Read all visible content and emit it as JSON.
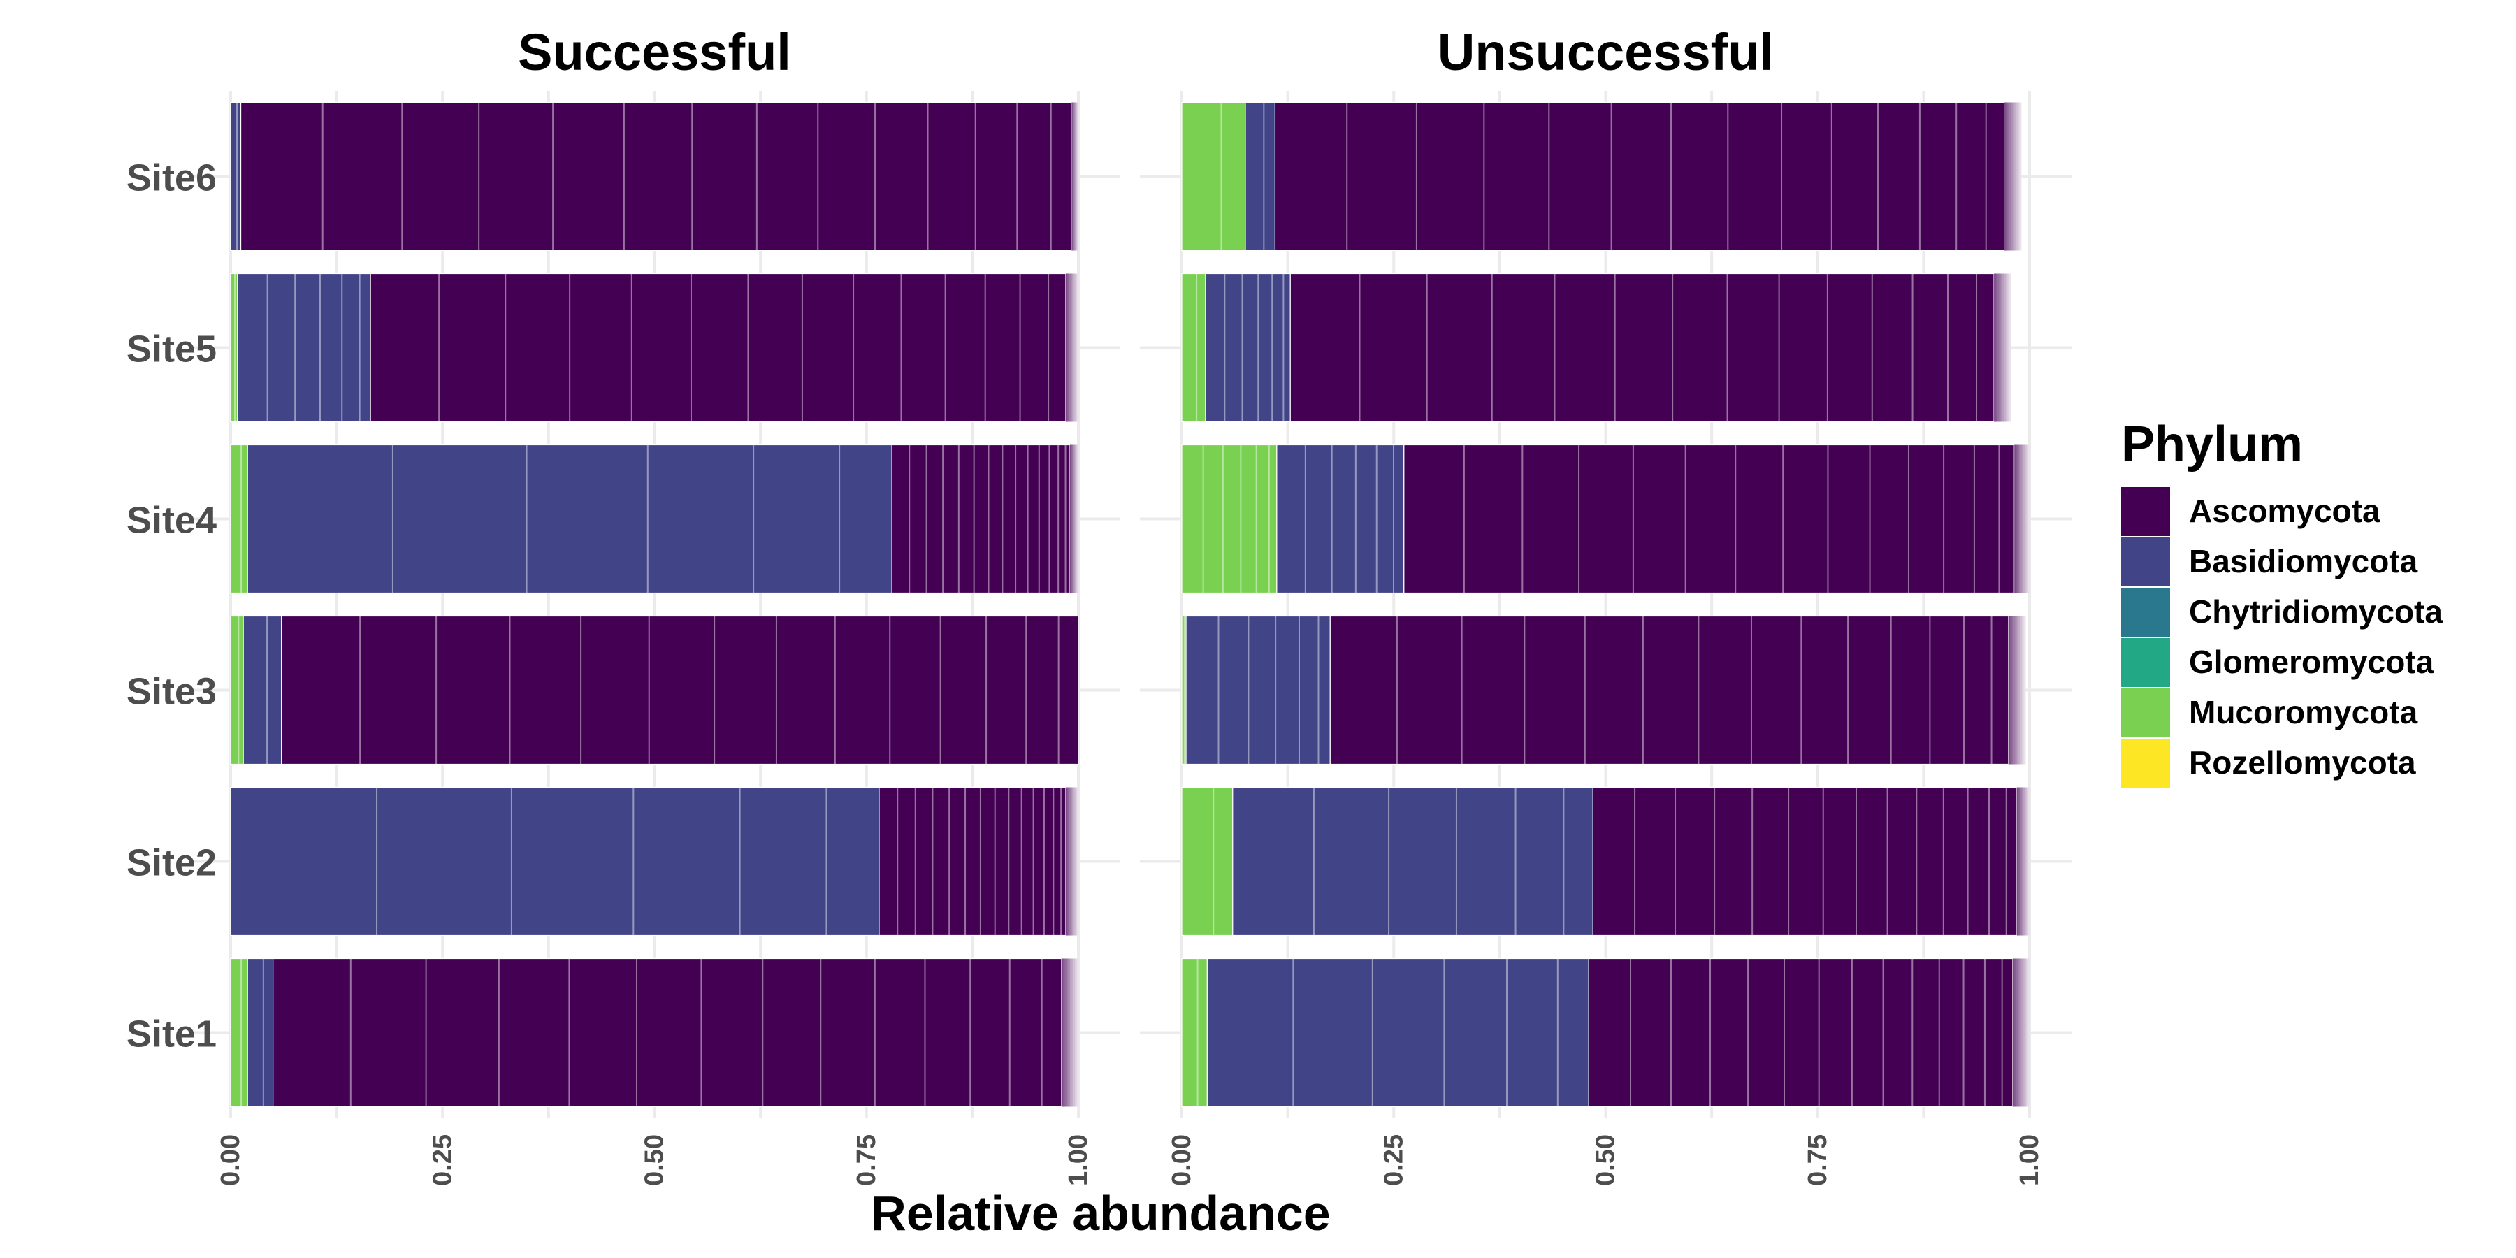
{
  "chart_data": {
    "type": "bar",
    "orientation": "horizontal",
    "stacked": true,
    "xlabel": "Relative abundance",
    "ylabel": "",
    "xlim": [
      0,
      1
    ],
    "x_ticks": [
      "0.00",
      "0.25",
      "0.50",
      "0.75",
      "1.00"
    ],
    "x_tick_values": [
      0,
      0.25,
      0.5,
      0.75,
      1.0
    ],
    "categories": [
      "Site1",
      "Site2",
      "Site3",
      "Site4",
      "Site5",
      "Site6"
    ],
    "grid": true,
    "legend": {
      "title": "Phylum",
      "position": "right",
      "entries": [
        {
          "name": "Ascomycota",
          "color": "#440154"
        },
        {
          "name": "Basidiomycota",
          "color": "#414487"
        },
        {
          "name": "Chytridiomycota",
          "color": "#2A788E"
        },
        {
          "name": "Glomeromycota",
          "color": "#22A884"
        },
        {
          "name": "Mucoromycota",
          "color": "#7AD151"
        },
        {
          "name": "Rozellomycota",
          "color": "#FDE725"
        }
      ]
    },
    "panels": [
      {
        "title": "Successful",
        "sites": [
          {
            "site": "Site1",
            "Mucoromycota": 0.02,
            "Basidiomycota": 0.03,
            "Ascomycota": 0.93
          },
          {
            "site": "Site2",
            "Mucoromycota": 0.0,
            "Basidiomycota": 0.765,
            "Ascomycota": 0.22
          },
          {
            "site": "Site3",
            "Mucoromycota": 0.015,
            "Basidiomycota": 0.045,
            "Ascomycota": 0.94
          },
          {
            "site": "Site4",
            "Mucoromycota": 0.02,
            "Basidiomycota": 0.76,
            "Ascomycota": 0.21
          },
          {
            "site": "Site5",
            "Mucoromycota": 0.008,
            "Basidiomycota": 0.157,
            "Ascomycota": 0.82
          },
          {
            "site": "Site6",
            "Mucoromycota": 0.0,
            "Basidiomycota": 0.012,
            "Ascomycota": 0.98
          }
        ]
      },
      {
        "title": "Unsuccessful",
        "sites": [
          {
            "site": "Site1",
            "Mucoromycota": 0.03,
            "Basidiomycota": 0.45,
            "Ascomycota": 0.5
          },
          {
            "site": "Site2",
            "Mucoromycota": 0.06,
            "Basidiomycota": 0.425,
            "Ascomycota": 0.5
          },
          {
            "site": "Site3",
            "Mucoromycota": 0.005,
            "Basidiomycota": 0.17,
            "Ascomycota": 0.8
          },
          {
            "site": "Site4",
            "Mucoromycota": 0.112,
            "Basidiomycota": 0.15,
            "Ascomycota": 0.72
          },
          {
            "site": "Site5",
            "Mucoromycota": 0.028,
            "Basidiomycota": 0.1,
            "Ascomycota": 0.83
          },
          {
            "site": "Site6",
            "Mucoromycota": 0.075,
            "Basidiomycota": 0.035,
            "Ascomycota": 0.86
          }
        ]
      }
    ]
  }
}
